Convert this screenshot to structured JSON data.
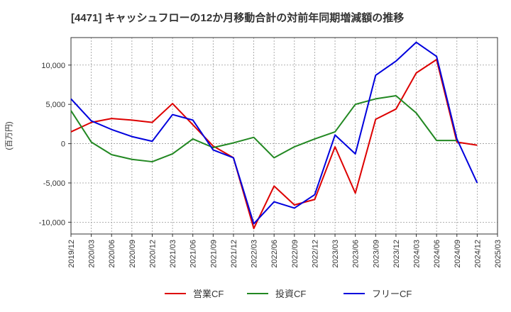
{
  "chart_data": {
    "type": "line",
    "title": "[4471]  キャッシュフローの12か月移動合計の対前年同期増減額の推移",
    "ylabel": "(百万円)",
    "xlabel": "",
    "ylim": [
      -11500,
      13500
    ],
    "yticks": [
      -10000,
      -5000,
      0,
      5000,
      10000
    ],
    "ytick_labels": [
      "-10,000",
      "-5,000",
      "0",
      "5,000",
      "10,000"
    ],
    "x": [
      "2019/12",
      "2020/03",
      "2020/06",
      "2020/09",
      "2020/12",
      "2021/03",
      "2021/06",
      "2021/09",
      "2021/12",
      "2022/03",
      "2022/06",
      "2022/09",
      "2022/12",
      "2023/03",
      "2023/06",
      "2023/09",
      "2023/12",
      "2024/03",
      "2024/06",
      "2024/09",
      "2024/12",
      "2025/03"
    ],
    "grid": true,
    "legend_position": "bottom",
    "series": [
      {
        "name": "営業CF",
        "color": "#dd0000",
        "values": [
          1500,
          2700,
          3200,
          3000,
          2700,
          5100,
          2400,
          -300,
          -1800,
          -10800,
          -5400,
          -7800,
          -7100,
          -400,
          -6300,
          3100,
          4400,
          9000,
          10700,
          200,
          -200,
          null
        ]
      },
      {
        "name": "投資CF",
        "color": "#228822",
        "values": [
          4200,
          200,
          -1400,
          -2000,
          -2300,
          -1300,
          600,
          -500,
          100,
          800,
          -1800,
          -400,
          600,
          1500,
          5000,
          5700,
          6100,
          3900,
          400,
          400,
          null,
          null
        ]
      },
      {
        "name": "フリーCF",
        "color": "#0000dd",
        "values": [
          5700,
          2900,
          1800,
          900,
          300,
          3700,
          3000,
          -800,
          -1800,
          -10200,
          -7400,
          -8200,
          -6500,
          1100,
          -1300,
          8700,
          10500,
          12900,
          11100,
          600,
          -5000,
          null
        ]
      }
    ]
  }
}
